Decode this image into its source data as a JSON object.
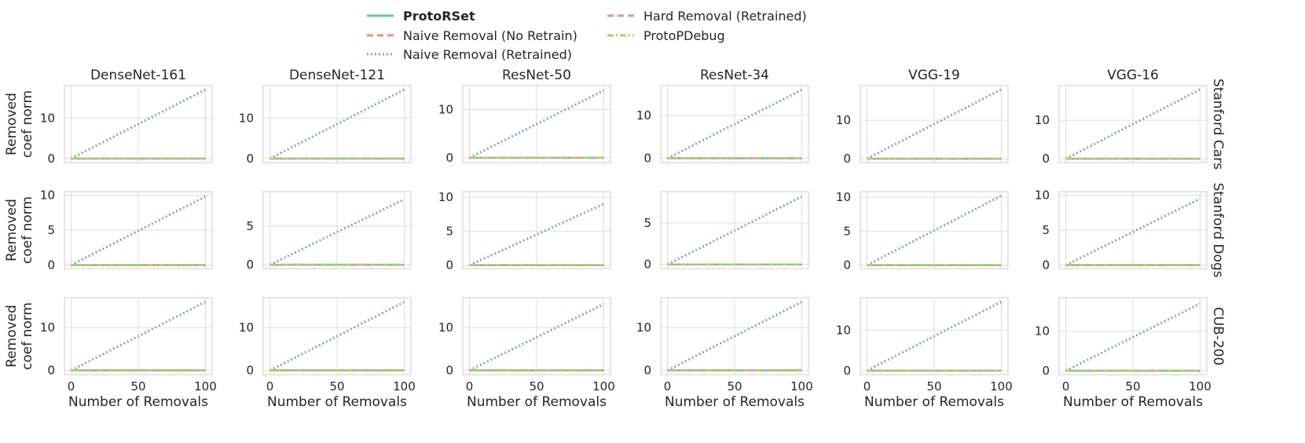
{
  "figure": {
    "legend": [
      {
        "label": "ProtoRSet",
        "color": "#66c2a5",
        "style": "solid",
        "bold": true
      },
      {
        "label": "Naive Removal (No Retrain)",
        "color": "#fc8d62",
        "style": "dashed"
      },
      {
        "label": "Naive Removal (Retrained)",
        "color": "#8da0cb",
        "style": "dotted"
      },
      {
        "label": "Hard Removal (Retrained)",
        "color": "#e78ac3",
        "style": "dashed"
      },
      {
        "label": "ProtoPDebug",
        "color": "#a6d854",
        "style": "dashdot"
      }
    ],
    "columns": [
      "DenseNet-161",
      "DenseNet-121",
      "ResNet-50",
      "ResNet-34",
      "VGG-19",
      "VGG-16"
    ],
    "rows": [
      "Stanford Cars",
      "Stanford Dogs",
      "CUB-200"
    ],
    "ylabel_line1": "Removed",
    "ylabel_line2": "coef norm",
    "xlabel": "Number of Removals",
    "grid": true
  },
  "chart_data": [
    {
      "type": "line",
      "title": "DenseNet-161",
      "dataset": "Stanford Cars",
      "xlim": [
        -5,
        105
      ],
      "ylim": [
        -1,
        18
      ],
      "xticks": [
        0,
        50,
        100
      ],
      "yticks": [
        0,
        10
      ],
      "x": [
        0,
        100
      ],
      "series": [
        {
          "name": "Naive Removal (Retrained)",
          "values": [
            0,
            17
          ]
        },
        {
          "name": "ProtoRSet",
          "values": [
            0,
            0
          ]
        },
        {
          "name": "Naive Removal (No Retrain)",
          "values": [
            0,
            0
          ]
        },
        {
          "name": "Hard Removal (Retrained)",
          "values": [
            0,
            0
          ]
        },
        {
          "name": "ProtoPDebug",
          "values": [
            0,
            0
          ]
        }
      ]
    },
    {
      "type": "line",
      "title": "DenseNet-121",
      "dataset": "Stanford Cars",
      "xlim": [
        -5,
        105
      ],
      "ylim": [
        -1,
        18
      ],
      "xticks": [
        0,
        50,
        100
      ],
      "yticks": [
        0,
        10
      ],
      "x": [
        0,
        100
      ],
      "series": [
        {
          "name": "Naive Removal (Retrained)",
          "values": [
            0,
            17
          ]
        },
        {
          "name": "ProtoRSet",
          "values": [
            0,
            0
          ]
        },
        {
          "name": "Naive Removal (No Retrain)",
          "values": [
            0,
            0
          ]
        },
        {
          "name": "Hard Removal (Retrained)",
          "values": [
            0,
            0
          ]
        },
        {
          "name": "ProtoPDebug",
          "values": [
            0,
            0
          ]
        }
      ]
    },
    {
      "type": "line",
      "title": "ResNet-50",
      "dataset": "Stanford Cars",
      "xlim": [
        -5,
        105
      ],
      "ylim": [
        -1,
        15
      ],
      "xticks": [
        0,
        50,
        100
      ],
      "yticks": [
        0,
        10
      ],
      "x": [
        0,
        100
      ],
      "series": [
        {
          "name": "Naive Removal (Retrained)",
          "values": [
            0,
            14
          ]
        },
        {
          "name": "ProtoRSet",
          "values": [
            0,
            0
          ]
        },
        {
          "name": "Naive Removal (No Retrain)",
          "values": [
            0,
            0
          ]
        },
        {
          "name": "Hard Removal (Retrained)",
          "values": [
            0,
            0
          ]
        },
        {
          "name": "ProtoPDebug",
          "values": [
            0,
            0
          ]
        }
      ]
    },
    {
      "type": "line",
      "title": "ResNet-34",
      "dataset": "Stanford Cars",
      "xlim": [
        -5,
        105
      ],
      "ylim": [
        -1,
        17
      ],
      "xticks": [
        0,
        50,
        100
      ],
      "yticks": [
        0,
        10
      ],
      "x": [
        0,
        100
      ],
      "series": [
        {
          "name": "Naive Removal (Retrained)",
          "values": [
            0,
            16
          ]
        },
        {
          "name": "ProtoRSet",
          "values": [
            0,
            0
          ]
        },
        {
          "name": "Naive Removal (No Retrain)",
          "values": [
            0,
            0
          ]
        },
        {
          "name": "Hard Removal (Retrained)",
          "values": [
            0,
            0
          ]
        },
        {
          "name": "ProtoPDebug",
          "values": [
            0,
            0
          ]
        }
      ]
    },
    {
      "type": "line",
      "title": "VGG-19",
      "dataset": "Stanford Cars",
      "xlim": [
        -5,
        105
      ],
      "ylim": [
        -1,
        19
      ],
      "xticks": [
        0,
        50,
        100
      ],
      "yticks": [
        0,
        10
      ],
      "x": [
        0,
        100
      ],
      "series": [
        {
          "name": "Naive Removal (Retrained)",
          "values": [
            0,
            18
          ]
        },
        {
          "name": "ProtoRSet",
          "values": [
            0,
            0
          ]
        },
        {
          "name": "Naive Removal (No Retrain)",
          "values": [
            0,
            0
          ]
        },
        {
          "name": "Hard Removal (Retrained)",
          "values": [
            0,
            0
          ]
        },
        {
          "name": "ProtoPDebug",
          "values": [
            0,
            0
          ]
        }
      ]
    },
    {
      "type": "line",
      "title": "VGG-16",
      "dataset": "Stanford Cars",
      "xlim": [
        -5,
        105
      ],
      "ylim": [
        -1,
        19
      ],
      "xticks": [
        0,
        50,
        100
      ],
      "yticks": [
        0,
        10
      ],
      "x": [
        0,
        100
      ],
      "series": [
        {
          "name": "Naive Removal (Retrained)",
          "values": [
            0,
            18
          ]
        },
        {
          "name": "ProtoRSet",
          "values": [
            0,
            0
          ]
        },
        {
          "name": "Naive Removal (No Retrain)",
          "values": [
            0,
            0
          ]
        },
        {
          "name": "Hard Removal (Retrained)",
          "values": [
            0,
            0
          ]
        },
        {
          "name": "ProtoPDebug",
          "values": [
            0,
            0
          ]
        }
      ]
    },
    {
      "type": "line",
      "dataset": "Stanford Dogs",
      "column": "DenseNet-161",
      "xlim": [
        -5,
        105
      ],
      "ylim": [
        -0.5,
        10.5
      ],
      "xticks": [
        0,
        50,
        100
      ],
      "yticks": [
        0,
        5,
        10
      ],
      "x": [
        0,
        100
      ],
      "series": [
        {
          "name": "Naive Removal (Retrained)",
          "values": [
            0,
            9.8
          ]
        },
        {
          "name": "ProtoRSet",
          "values": [
            0,
            0
          ]
        },
        {
          "name": "Naive Removal (No Retrain)",
          "values": [
            0,
            0
          ]
        },
        {
          "name": "Hard Removal (Retrained)",
          "values": [
            0,
            0
          ]
        },
        {
          "name": "ProtoPDebug",
          "values": [
            0,
            0
          ]
        }
      ]
    },
    {
      "type": "line",
      "dataset": "Stanford Dogs",
      "column": "DenseNet-121",
      "xlim": [
        -5,
        105
      ],
      "ylim": [
        -0.5,
        9.5
      ],
      "xticks": [
        0,
        50,
        100
      ],
      "yticks": [
        0,
        5
      ],
      "x": [
        0,
        100
      ],
      "series": [
        {
          "name": "Naive Removal (Retrained)",
          "values": [
            0,
            8.5
          ]
        },
        {
          "name": "ProtoRSet",
          "values": [
            0,
            0
          ]
        },
        {
          "name": "Naive Removal (No Retrain)",
          "values": [
            0,
            0
          ]
        },
        {
          "name": "Hard Removal (Retrained)",
          "values": [
            0,
            0
          ]
        },
        {
          "name": "ProtoPDebug",
          "values": [
            0,
            0
          ]
        }
      ]
    },
    {
      "type": "line",
      "dataset": "Stanford Dogs",
      "column": "ResNet-50",
      "xlim": [
        -5,
        105
      ],
      "ylim": [
        -0.5,
        10.8
      ],
      "xticks": [
        0,
        50,
        100
      ],
      "yticks": [
        0,
        5,
        10
      ],
      "x": [
        0,
        100
      ],
      "series": [
        {
          "name": "Naive Removal (Retrained)",
          "values": [
            0,
            9
          ]
        },
        {
          "name": "ProtoRSet",
          "values": [
            0,
            0
          ]
        },
        {
          "name": "Naive Removal (No Retrain)",
          "values": [
            0,
            0
          ]
        },
        {
          "name": "Hard Removal (Retrained)",
          "values": [
            0,
            0
          ]
        },
        {
          "name": "ProtoPDebug",
          "values": [
            0,
            0
          ]
        }
      ]
    },
    {
      "type": "line",
      "dataset": "Stanford Dogs",
      "column": "ResNet-34",
      "xlim": [
        -5,
        105
      ],
      "ylim": [
        -0.5,
        8.8
      ],
      "xticks": [
        0,
        50,
        100
      ],
      "yticks": [
        0,
        5
      ],
      "x": [
        0,
        100
      ],
      "series": [
        {
          "name": "Naive Removal (Retrained)",
          "values": [
            0,
            8.2
          ]
        },
        {
          "name": "ProtoRSet",
          "values": [
            0,
            0
          ]
        },
        {
          "name": "Naive Removal (No Retrain)",
          "values": [
            0,
            0
          ]
        },
        {
          "name": "Hard Removal (Retrained)",
          "values": [
            0,
            0
          ]
        },
        {
          "name": "ProtoPDebug",
          "values": [
            0,
            0
          ]
        }
      ]
    },
    {
      "type": "line",
      "dataset": "Stanford Dogs",
      "column": "VGG-19",
      "xlim": [
        -5,
        105
      ],
      "ylim": [
        -0.5,
        10.8
      ],
      "xticks": [
        0,
        50,
        100
      ],
      "yticks": [
        0,
        5,
        10
      ],
      "x": [
        0,
        100
      ],
      "series": [
        {
          "name": "Naive Removal (Retrained)",
          "values": [
            0,
            10.2
          ]
        },
        {
          "name": "ProtoRSet",
          "values": [
            0,
            0
          ]
        },
        {
          "name": "Naive Removal (No Retrain)",
          "values": [
            0,
            0
          ]
        },
        {
          "name": "Hard Removal (Retrained)",
          "values": [
            0,
            0
          ]
        },
        {
          "name": "ProtoPDebug",
          "values": [
            0,
            0
          ]
        }
      ]
    },
    {
      "type": "line",
      "dataset": "Stanford Dogs",
      "column": "VGG-16",
      "xlim": [
        -5,
        105
      ],
      "ylim": [
        -0.5,
        10.5
      ],
      "xticks": [
        0,
        50,
        100
      ],
      "yticks": [
        0,
        5,
        10
      ],
      "x": [
        0,
        100
      ],
      "series": [
        {
          "name": "Naive Removal (Retrained)",
          "values": [
            0,
            9.5
          ]
        },
        {
          "name": "ProtoRSet",
          "values": [
            0,
            0
          ]
        },
        {
          "name": "Naive Removal (No Retrain)",
          "values": [
            0,
            0
          ]
        },
        {
          "name": "Hard Removal (Retrained)",
          "values": [
            0,
            0
          ]
        },
        {
          "name": "ProtoPDebug",
          "values": [
            0,
            0
          ]
        }
      ]
    },
    {
      "type": "line",
      "dataset": "CUB-200",
      "column": "DenseNet-161",
      "xlim": [
        -5,
        105
      ],
      "ylim": [
        -1,
        17
      ],
      "xticks": [
        0,
        50,
        100
      ],
      "yticks": [
        0,
        10
      ],
      "x": [
        0,
        100
      ],
      "series": [
        {
          "name": "Naive Removal (Retrained)",
          "values": [
            0,
            16
          ]
        },
        {
          "name": "ProtoRSet",
          "values": [
            0,
            0
          ]
        },
        {
          "name": "Naive Removal (No Retrain)",
          "values": [
            0,
            0
          ]
        },
        {
          "name": "Hard Removal (Retrained)",
          "values": [
            0,
            0
          ]
        },
        {
          "name": "ProtoPDebug",
          "values": [
            0,
            0
          ]
        }
      ]
    },
    {
      "type": "line",
      "dataset": "CUB-200",
      "column": "DenseNet-121",
      "xlim": [
        -5,
        105
      ],
      "ylim": [
        -1,
        17
      ],
      "xticks": [
        0,
        50,
        100
      ],
      "yticks": [
        0,
        10
      ],
      "x": [
        0,
        100
      ],
      "series": [
        {
          "name": "Naive Removal (Retrained)",
          "values": [
            0,
            16
          ]
        },
        {
          "name": "ProtoRSet",
          "values": [
            0,
            0
          ]
        },
        {
          "name": "Naive Removal (No Retrain)",
          "values": [
            0,
            0
          ]
        },
        {
          "name": "Hard Removal (Retrained)",
          "values": [
            0,
            0
          ]
        },
        {
          "name": "ProtoPDebug",
          "values": [
            0,
            0
          ]
        }
      ]
    },
    {
      "type": "line",
      "dataset": "CUB-200",
      "column": "ResNet-50",
      "xlim": [
        -5,
        105
      ],
      "ylim": [
        -1,
        17
      ],
      "xticks": [
        0,
        50,
        100
      ],
      "yticks": [
        0,
        10
      ],
      "x": [
        0,
        100
      ],
      "series": [
        {
          "name": "Naive Removal (Retrained)",
          "values": [
            0,
            15.5
          ]
        },
        {
          "name": "ProtoRSet",
          "values": [
            0,
            0
          ]
        },
        {
          "name": "Naive Removal (No Retrain)",
          "values": [
            0,
            0
          ]
        },
        {
          "name": "Hard Removal (Retrained)",
          "values": [
            0,
            0
          ]
        },
        {
          "name": "ProtoPDebug",
          "values": [
            0,
            0
          ]
        }
      ]
    },
    {
      "type": "line",
      "dataset": "CUB-200",
      "column": "ResNet-34",
      "xlim": [
        -5,
        105
      ],
      "ylim": [
        -1,
        17
      ],
      "xticks": [
        0,
        50,
        100
      ],
      "yticks": [
        0,
        10
      ],
      "x": [
        0,
        100
      ],
      "series": [
        {
          "name": "Naive Removal (Retrained)",
          "values": [
            0,
            16
          ]
        },
        {
          "name": "ProtoRSet",
          "values": [
            0,
            0
          ]
        },
        {
          "name": "Naive Removal (No Retrain)",
          "values": [
            0,
            0
          ]
        },
        {
          "name": "Hard Removal (Retrained)",
          "values": [
            0,
            0
          ]
        },
        {
          "name": "ProtoPDebug",
          "values": [
            0,
            0
          ]
        }
      ]
    },
    {
      "type": "line",
      "dataset": "CUB-200",
      "column": "VGG-19",
      "xlim": [
        -5,
        105
      ],
      "ylim": [
        -1,
        18
      ],
      "xticks": [
        0,
        50,
        100
      ],
      "yticks": [
        0,
        10
      ],
      "x": [
        0,
        100
      ],
      "series": [
        {
          "name": "Naive Removal (Retrained)",
          "values": [
            0,
            17
          ]
        },
        {
          "name": "ProtoRSet",
          "values": [
            0,
            0
          ]
        },
        {
          "name": "Naive Removal (No Retrain)",
          "values": [
            0,
            0
          ]
        },
        {
          "name": "Hard Removal (Retrained)",
          "values": [
            0,
            0
          ]
        },
        {
          "name": "ProtoPDebug",
          "values": [
            0,
            0
          ]
        }
      ]
    },
    {
      "type": "line",
      "dataset": "CUB-200",
      "column": "VGG-16",
      "xlim": [
        -5,
        105
      ],
      "ylim": [
        -1,
        18.5
      ],
      "xticks": [
        0,
        50,
        100
      ],
      "yticks": [
        0,
        10
      ],
      "x": [
        0,
        100
      ],
      "series": [
        {
          "name": "Naive Removal (Retrained)",
          "values": [
            0,
            17
          ]
        },
        {
          "name": "ProtoRSet",
          "values": [
            0,
            0
          ]
        },
        {
          "name": "Naive Removal (No Retrain)",
          "values": [
            0,
            0
          ]
        },
        {
          "name": "Hard Removal (Retrained)",
          "values": [
            0,
            0
          ]
        },
        {
          "name": "ProtoPDebug",
          "values": [
            0,
            0
          ]
        }
      ]
    }
  ]
}
